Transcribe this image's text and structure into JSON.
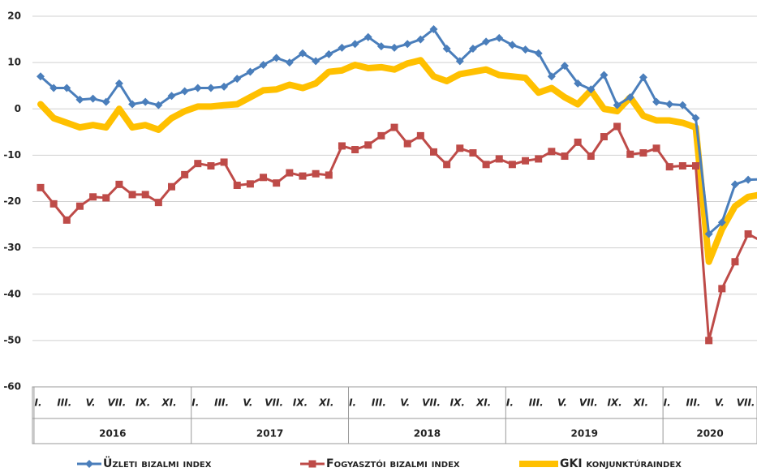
{
  "chart_data": {
    "type": "line",
    "categories": [
      "I.",
      null,
      "III.",
      null,
      "V.",
      null,
      "VII.",
      null,
      "IX.",
      null,
      "XI.",
      null,
      "I.",
      null,
      "III.",
      null,
      "V.",
      null,
      "VII.",
      null,
      "IX.",
      null,
      "XI.",
      null,
      "I.",
      null,
      "III.",
      null,
      "V.",
      null,
      "VII.",
      null,
      "IX.",
      null,
      "XI.",
      null,
      "I.",
      null,
      "III.",
      null,
      "V.",
      null,
      "VII.",
      null,
      "IX.",
      null,
      "XI.",
      null,
      "I.",
      null,
      "III.",
      null,
      "V.",
      null,
      "VII.",
      null
    ],
    "years": [
      "2016",
      "2017",
      "2018",
      "2019",
      "2020"
    ],
    "series": [
      {
        "name": "Üzleti bizalmi index",
        "color": "#4a7ebb",
        "marker": "diamond",
        "values": [
          7,
          4.5,
          4.5,
          2,
          2.2,
          1.5,
          5.5,
          1,
          1.5,
          0.8,
          2.8,
          3.8,
          4.5,
          4.5,
          4.8,
          6.5,
          8,
          9.5,
          11,
          10,
          12,
          10.3,
          11.8,
          13.2,
          14,
          15.5,
          13.5,
          13.2,
          14,
          15,
          17.2,
          13,
          10.3,
          13,
          14.5,
          15.3,
          13.8,
          12.8,
          12,
          7,
          9.3,
          5.5,
          4.2,
          7.3,
          0.8,
          2.5,
          6.8,
          1.5,
          1,
          0.8,
          -2,
          -27,
          -24.5,
          -16.3,
          -15.3,
          -15.2
        ]
      },
      {
        "name": "Fogyasztói bizalmi index",
        "color": "#be4b48",
        "marker": "square",
        "values": [
          -17,
          -20.5,
          -24,
          -21,
          -19,
          -19.2,
          -16.3,
          -18.5,
          -18.5,
          -20.2,
          -16.8,
          -14.2,
          -11.8,
          -12.3,
          -11.5,
          -16.5,
          -16.2,
          -14.8,
          -16,
          -13.8,
          -14.5,
          -14,
          -14.3,
          -8,
          -8.8,
          -7.8,
          -5.8,
          -4,
          -7.5,
          -5.8,
          -9.3,
          -12,
          -8.5,
          -9.5,
          -12,
          -10.8,
          -12,
          -11.2,
          -10.8,
          -9.2,
          -10.2,
          -7.2,
          -10.2,
          -6,
          -3.8,
          -9.8,
          -9.5,
          -8.5,
          -12.5,
          -12.3,
          -12.3,
          -50,
          -38.8,
          -33,
          -27,
          -28.5
        ]
      },
      {
        "name": "GKI konjunktúraindex",
        "color": "#ffc000",
        "marker": "none",
        "values": [
          1,
          -2,
          -3,
          -4,
          -3.5,
          -4,
          0,
          -4,
          -3.5,
          -4.5,
          -2,
          -0.5,
          0.5,
          0.5,
          0.8,
          1,
          2.5,
          4,
          4.2,
          5.2,
          4.5,
          5.5,
          8,
          8.3,
          9.5,
          8.8,
          9,
          8.5,
          9.8,
          10.5,
          7,
          6,
          7.5,
          8,
          8.5,
          7.3,
          7,
          6.7,
          3.5,
          4.5,
          2.5,
          1,
          4,
          0,
          -0.5,
          2.5,
          -1.5,
          -2.5,
          -2.5,
          -3,
          -4,
          -33,
          -26,
          -21,
          -19,
          -18.5
        ]
      }
    ],
    "ylim": [
      -60,
      20
    ],
    "yticks": [
      20,
      10,
      0,
      -10,
      -20,
      -30,
      -40,
      -50,
      -60
    ],
    "grid": true
  }
}
